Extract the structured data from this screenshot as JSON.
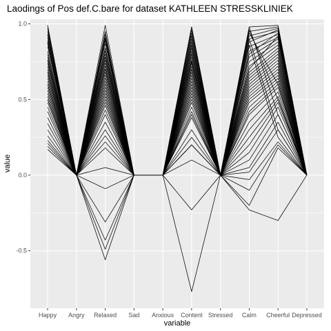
{
  "chart_data": {
    "type": "line",
    "title": "Laodings of Pos def.C.bare for dataset KATHLEEN STRESSKLINIEK",
    "xlabel": "variable",
    "ylabel": "value",
    "categories": [
      "Happy",
      "Angry",
      "Relaxed",
      "Sad",
      "Anxious",
      "Content",
      "Stressed",
      "Calm",
      "Cheerful",
      "Depressed"
    ],
    "yticks": [
      "-0.5",
      "0.0",
      "0.5",
      "1.0"
    ],
    "ylim": [
      -0.88,
      1.03
    ],
    "grid": true,
    "background": "#ebebeb",
    "grid_color": "#ffffff",
    "line_color": "#000000",
    "series": [
      {
        "values": [
          0.99,
          0.0,
          0.99,
          0.0,
          0.0,
          0.98,
          0.0,
          0.98,
          0.99,
          0.0
        ]
      },
      {
        "values": [
          0.97,
          0.0,
          0.95,
          0.0,
          0.0,
          0.96,
          0.0,
          0.95,
          0.98,
          0.0
        ]
      },
      {
        "values": [
          0.95,
          0.0,
          0.93,
          0.0,
          0.0,
          0.94,
          0.0,
          0.92,
          0.97,
          0.0
        ]
      },
      {
        "values": [
          0.93,
          0.0,
          0.91,
          0.0,
          0.0,
          0.92,
          0.0,
          0.9,
          0.95,
          0.0
        ]
      },
      {
        "values": [
          0.91,
          0.0,
          0.89,
          0.0,
          0.0,
          0.9,
          0.0,
          0.88,
          0.96,
          0.0
        ]
      },
      {
        "values": [
          0.89,
          0.0,
          0.87,
          0.0,
          0.0,
          0.88,
          0.0,
          0.85,
          0.93,
          0.0
        ]
      },
      {
        "values": [
          0.87,
          0.0,
          0.84,
          0.0,
          0.0,
          0.86,
          0.0,
          0.82,
          0.91,
          0.0
        ]
      },
      {
        "values": [
          0.85,
          0.0,
          0.82,
          0.0,
          0.0,
          0.84,
          0.0,
          0.8,
          0.94,
          0.0
        ]
      },
      {
        "values": [
          0.82,
          0.0,
          0.8,
          0.0,
          0.0,
          0.82,
          0.0,
          0.78,
          0.9,
          0.0
        ]
      },
      {
        "values": [
          0.8,
          0.0,
          0.78,
          0.0,
          0.0,
          0.8,
          0.0,
          0.75,
          0.88,
          0.0
        ]
      },
      {
        "values": [
          0.78,
          0.0,
          0.76,
          0.0,
          0.0,
          0.78,
          0.0,
          0.72,
          0.86,
          0.0
        ]
      },
      {
        "values": [
          0.76,
          0.0,
          0.74,
          0.0,
          0.0,
          0.76,
          0.0,
          0.7,
          0.92,
          0.0
        ]
      },
      {
        "values": [
          0.74,
          0.0,
          0.72,
          0.0,
          0.0,
          0.74,
          0.0,
          0.68,
          0.84,
          0.0
        ]
      },
      {
        "values": [
          0.72,
          0.0,
          0.7,
          0.0,
          0.0,
          0.72,
          0.0,
          0.66,
          0.82,
          0.0
        ]
      },
      {
        "values": [
          0.7,
          0.0,
          0.68,
          0.0,
          0.0,
          0.7,
          0.0,
          0.64,
          0.8,
          0.0
        ]
      },
      {
        "values": [
          0.68,
          0.0,
          0.66,
          0.0,
          0.0,
          0.68,
          0.0,
          0.62,
          0.78,
          0.0
        ]
      },
      {
        "values": [
          0.66,
          0.0,
          0.64,
          0.0,
          0.0,
          0.66,
          0.0,
          0.6,
          0.76,
          0.0
        ]
      },
      {
        "values": [
          0.64,
          0.0,
          0.62,
          0.0,
          0.0,
          0.64,
          0.0,
          0.58,
          0.74,
          0.0
        ]
      },
      {
        "values": [
          0.62,
          0.0,
          0.6,
          0.0,
          0.0,
          0.62,
          0.0,
          0.56,
          0.72,
          0.0
        ]
      },
      {
        "values": [
          0.6,
          0.0,
          0.58,
          0.0,
          0.0,
          0.6,
          0.0,
          0.54,
          0.7,
          0.0
        ]
      },
      {
        "values": [
          0.58,
          0.0,
          0.56,
          0.0,
          0.0,
          0.58,
          0.0,
          0.52,
          0.68,
          0.0
        ]
      },
      {
        "values": [
          0.56,
          0.0,
          0.54,
          0.0,
          0.0,
          0.56,
          0.0,
          0.5,
          0.66,
          0.0
        ]
      },
      {
        "values": [
          0.54,
          0.0,
          0.52,
          0.0,
          0.0,
          0.54,
          0.0,
          0.48,
          0.64,
          0.0
        ]
      },
      {
        "values": [
          0.52,
          0.0,
          0.5,
          0.0,
          0.0,
          0.52,
          0.0,
          0.45,
          0.62,
          0.0
        ]
      },
      {
        "values": [
          0.5,
          0.0,
          0.48,
          0.0,
          0.0,
          0.5,
          0.0,
          0.42,
          0.6,
          0.0
        ]
      },
      {
        "values": [
          0.48,
          0.0,
          0.46,
          0.0,
          0.0,
          0.48,
          0.0,
          0.4,
          0.58,
          0.0
        ]
      },
      {
        "values": [
          0.45,
          0.0,
          0.43,
          0.0,
          0.0,
          0.45,
          0.0,
          0.35,
          0.55,
          0.0
        ]
      },
      {
        "values": [
          0.42,
          0.0,
          0.4,
          0.0,
          0.0,
          0.42,
          0.0,
          0.3,
          0.52,
          0.0
        ]
      },
      {
        "values": [
          0.38,
          0.0,
          0.35,
          0.0,
          0.0,
          0.4,
          0.0,
          0.25,
          0.5,
          0.0
        ]
      },
      {
        "values": [
          0.34,
          0.0,
          0.3,
          0.0,
          0.0,
          0.38,
          0.0,
          0.2,
          0.48,
          0.0
        ]
      },
      {
        "values": [
          0.3,
          0.0,
          0.26,
          0.0,
          0.0,
          0.3,
          0.0,
          0.15,
          0.45,
          0.0
        ]
      },
      {
        "values": [
          0.26,
          0.0,
          0.22,
          0.0,
          0.0,
          0.25,
          0.0,
          0.1,
          0.4,
          0.0
        ]
      },
      {
        "values": [
          0.23,
          0.0,
          0.18,
          0.0,
          0.0,
          0.2,
          0.0,
          0.05,
          0.35,
          0.0
        ]
      },
      {
        "values": [
          0.21,
          0.0,
          0.05,
          0.0,
          0.0,
          0.2,
          0.0,
          0.02,
          0.3,
          0.0
        ]
      },
      {
        "values": [
          0.19,
          0.0,
          -0.09,
          0.0,
          0.0,
          0.2,
          0.0,
          -0.03,
          0.22,
          0.0
        ]
      },
      {
        "values": [
          0.17,
          0.0,
          -0.31,
          0.0,
          0.0,
          0.1,
          0.0,
          -0.1,
          0.2,
          0.0
        ]
      },
      {
        "values": [
          0.99,
          0.0,
          -0.43,
          0.0,
          0.0,
          -0.23,
          0.0,
          -0.2,
          0.18,
          0.0
        ]
      },
      {
        "values": [
          0.88,
          0.0,
          -0.49,
          0.0,
          0.0,
          -0.77,
          0.0,
          -0.23,
          -0.3,
          0.0
        ]
      },
      {
        "values": [
          0.93,
          0.0,
          -0.56,
          0.0,
          0.0,
          0.98,
          0.0,
          0.98,
          0.4,
          0.0
        ]
      },
      {
        "values": [
          0.76,
          0.0,
          0.9,
          0.0,
          0.0,
          0.86,
          0.0,
          0.96,
          0.5,
          0.0
        ]
      },
      {
        "values": [
          0.68,
          0.0,
          0.84,
          0.0,
          0.0,
          0.8,
          0.0,
          0.94,
          0.6,
          0.0
        ]
      },
      {
        "values": [
          0.6,
          0.0,
          0.78,
          0.0,
          0.0,
          0.75,
          0.0,
          0.9,
          0.3,
          0.0
        ]
      },
      {
        "values": [
          0.5,
          0.0,
          0.7,
          0.0,
          0.0,
          0.7,
          0.0,
          0.86,
          0.25,
          0.0
        ]
      }
    ]
  }
}
